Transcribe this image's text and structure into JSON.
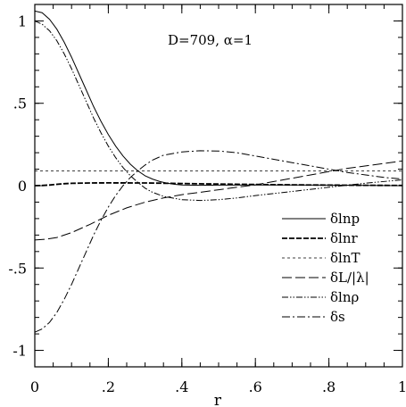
{
  "chart_data": {
    "type": "line",
    "annotation": "D=709,  α=1",
    "xlabel": "r",
    "ylabel": "",
    "xlim": [
      0,
      1
    ],
    "ylim": [
      -1.1,
      1.1
    ],
    "x_ticks": [
      {
        "value": 0,
        "label": "0"
      },
      {
        "value": 0.2,
        "label": ".2"
      },
      {
        "value": 0.4,
        "label": ".4"
      },
      {
        "value": 0.6,
        "label": ".6"
      },
      {
        "value": 0.8,
        "label": ".8"
      },
      {
        "value": 1,
        "label": "1"
      }
    ],
    "y_ticks": [
      {
        "value": 1,
        "label": "1"
      },
      {
        "value": 0.5,
        "label": ".5"
      },
      {
        "value": 0,
        "label": "0"
      },
      {
        "value": -0.5,
        "label": "-.5"
      },
      {
        "value": -1,
        "label": "-1"
      }
    ],
    "x_minor_step": 0.05,
    "y_minor_step": 0.1,
    "grid": false,
    "legend_position": "bottom-right",
    "series": [
      {
        "name": "δlnp",
        "dash": "",
        "width": 1.0,
        "points": [
          [
            0,
            1.06
          ],
          [
            0.02,
            1.05
          ],
          [
            0.04,
            1.01
          ],
          [
            0.06,
            0.95
          ],
          [
            0.08,
            0.87
          ],
          [
            0.1,
            0.78
          ],
          [
            0.12,
            0.68
          ],
          [
            0.14,
            0.58
          ],
          [
            0.16,
            0.48
          ],
          [
            0.18,
            0.39
          ],
          [
            0.2,
            0.31
          ],
          [
            0.22,
            0.24
          ],
          [
            0.24,
            0.18
          ],
          [
            0.26,
            0.13
          ],
          [
            0.28,
            0.09
          ],
          [
            0.3,
            0.06
          ],
          [
            0.32,
            0.04
          ],
          [
            0.34,
            0.025
          ],
          [
            0.36,
            0.015
          ],
          [
            0.38,
            0.008
          ],
          [
            0.4,
            0.004
          ],
          [
            0.45,
            0.002
          ],
          [
            0.5,
            0.003
          ],
          [
            0.6,
            0.004
          ],
          [
            0.7,
            0.004
          ],
          [
            0.8,
            0.003
          ],
          [
            0.9,
            0.001
          ],
          [
            1,
            0
          ]
        ]
      },
      {
        "name": "δlnr",
        "dash": "6,2",
        "width": 1.8,
        "points": [
          [
            0,
            0
          ],
          [
            0.02,
            0.001
          ],
          [
            0.04,
            0.004
          ],
          [
            0.06,
            0.008
          ],
          [
            0.08,
            0.012
          ],
          [
            0.1,
            0.014
          ],
          [
            0.15,
            0.016
          ],
          [
            0.2,
            0.017
          ],
          [
            0.3,
            0.016
          ],
          [
            0.4,
            0.013
          ],
          [
            0.5,
            0.01
          ],
          [
            0.6,
            0.007
          ],
          [
            0.7,
            0.005
          ],
          [
            0.8,
            0.003
          ],
          [
            0.9,
            0.002
          ],
          [
            1,
            0.001
          ]
        ]
      },
      {
        "name": "δlnT",
        "dash": "3,3",
        "width": 0.8,
        "points": [
          [
            0,
            0.09
          ],
          [
            0.2,
            0.09
          ],
          [
            0.4,
            0.09
          ],
          [
            0.6,
            0.09
          ],
          [
            0.8,
            0.09
          ],
          [
            1,
            0.09
          ]
        ]
      },
      {
        "name": "δL/|λ|",
        "dash": "11,4",
        "width": 1.0,
        "points": [
          [
            0,
            -0.33
          ],
          [
            0.03,
            -0.325
          ],
          [
            0.06,
            -0.315
          ],
          [
            0.1,
            -0.285
          ],
          [
            0.15,
            -0.235
          ],
          [
            0.2,
            -0.18
          ],
          [
            0.25,
            -0.135
          ],
          [
            0.3,
            -0.1
          ],
          [
            0.35,
            -0.075
          ],
          [
            0.4,
            -0.055
          ],
          [
            0.45,
            -0.04
          ],
          [
            0.5,
            -0.025
          ],
          [
            0.55,
            -0.01
          ],
          [
            0.6,
            0.005
          ],
          [
            0.65,
            0.025
          ],
          [
            0.7,
            0.045
          ],
          [
            0.75,
            0.065
          ],
          [
            0.8,
            0.085
          ],
          [
            0.85,
            0.105
          ],
          [
            0.9,
            0.12
          ],
          [
            0.95,
            0.135
          ],
          [
            1,
            0.15
          ]
        ]
      },
      {
        "name": "δlnρ",
        "dash": "7,2,1.5,2,1.5,2",
        "width": 1.0,
        "points": [
          [
            0,
            1.0
          ],
          [
            0.02,
            0.98
          ],
          [
            0.04,
            0.94
          ],
          [
            0.06,
            0.88
          ],
          [
            0.08,
            0.8
          ],
          [
            0.1,
            0.71
          ],
          [
            0.12,
            0.61
          ],
          [
            0.14,
            0.51
          ],
          [
            0.16,
            0.41
          ],
          [
            0.18,
            0.32
          ],
          [
            0.2,
            0.24
          ],
          [
            0.22,
            0.17
          ],
          [
            0.24,
            0.11
          ],
          [
            0.26,
            0.06
          ],
          [
            0.28,
            0.02
          ],
          [
            0.3,
            -0.015
          ],
          [
            0.32,
            -0.04
          ],
          [
            0.35,
            -0.065
          ],
          [
            0.4,
            -0.085
          ],
          [
            0.45,
            -0.09
          ],
          [
            0.5,
            -0.085
          ],
          [
            0.55,
            -0.075
          ],
          [
            0.6,
            -0.06
          ],
          [
            0.7,
            -0.035
          ],
          [
            0.8,
            -0.01
          ],
          [
            0.9,
            0.015
          ],
          [
            1,
            0.035
          ]
        ]
      },
      {
        "name": "δs",
        "dash": "9,3,2,3",
        "width": 1.0,
        "points": [
          [
            0,
            -0.89
          ],
          [
            0.02,
            -0.87
          ],
          [
            0.04,
            -0.83
          ],
          [
            0.06,
            -0.77
          ],
          [
            0.08,
            -0.69
          ],
          [
            0.1,
            -0.6
          ],
          [
            0.12,
            -0.5
          ],
          [
            0.14,
            -0.4
          ],
          [
            0.16,
            -0.3
          ],
          [
            0.18,
            -0.21
          ],
          [
            0.2,
            -0.13
          ],
          [
            0.22,
            -0.06
          ],
          [
            0.24,
            0.0
          ],
          [
            0.26,
            0.05
          ],
          [
            0.28,
            0.09
          ],
          [
            0.3,
            0.125
          ],
          [
            0.32,
            0.155
          ],
          [
            0.35,
            0.185
          ],
          [
            0.4,
            0.205
          ],
          [
            0.45,
            0.212
          ],
          [
            0.5,
            0.21
          ],
          [
            0.55,
            0.2
          ],
          [
            0.6,
            0.18
          ],
          [
            0.65,
            0.16
          ],
          [
            0.7,
            0.14
          ],
          [
            0.75,
            0.12
          ],
          [
            0.8,
            0.1
          ],
          [
            0.85,
            0.08
          ],
          [
            0.9,
            0.065
          ],
          [
            0.95,
            0.05
          ],
          [
            1,
            0.04
          ]
        ]
      }
    ]
  }
}
